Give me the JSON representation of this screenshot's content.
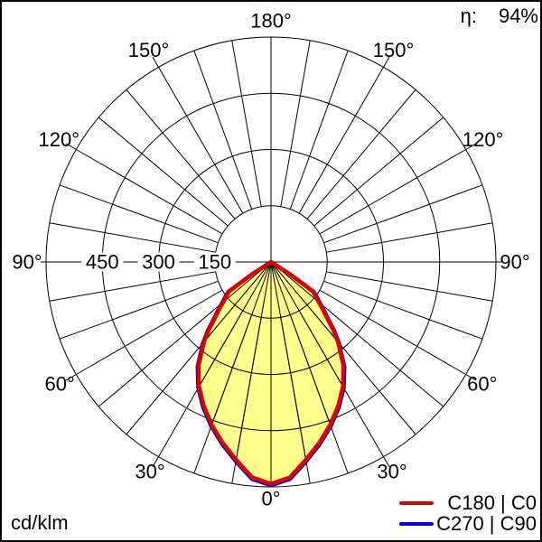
{
  "figure": {
    "background": "#ffffff",
    "frame_color": "#000000"
  },
  "texts": {
    "efficiency_symbol": "η:",
    "efficiency_value": "94%",
    "unit": "cd/klm"
  },
  "legend": [
    {
      "label": "C180 | C0",
      "color": "#d90000"
    },
    {
      "label": "C270 | C90",
      "color": "#0000cc"
    }
  ],
  "chart_data": {
    "type": "polar",
    "subtype": "luminous-intensity-distribution",
    "unit": "cd/klm",
    "light_output_ratio": "94%",
    "radial_axis": {
      "max": 600,
      "ticks": [
        150,
        300,
        450
      ],
      "tick_labels": [
        "150",
        "300",
        "450"
      ]
    },
    "angle_axis": {
      "step_deg": 10,
      "labeled_every_deg": 30,
      "labels": [
        "0°",
        "30°",
        "60°",
        "90°",
        "120°",
        "150°",
        "180°"
      ],
      "orientation": "0 deg at bottom, 180 deg at top, mirrored left and right"
    },
    "gamma_deg": [
      0,
      5,
      10,
      15,
      20,
      25,
      30,
      35,
      40,
      42.5,
      45,
      47.5,
      50,
      52.5,
      55,
      57,
      58,
      60,
      65,
      70,
      75,
      80,
      85,
      90
    ],
    "series": [
      {
        "name": "C180 | C0",
        "color": "#d90000",
        "fill": "#ffff8c",
        "values": [
          592,
          577,
          536,
          499,
          462,
          424,
          384,
          337,
          278,
          246,
          212,
          188,
          166,
          150,
          136,
          60,
          0,
          0,
          0,
          0,
          0,
          0,
          0,
          0
        ]
      },
      {
        "name": "C270 | C90",
        "color": "#0000cc",
        "values": [
          596,
          581,
          540,
          503,
          466,
          428,
          388,
          341,
          282,
          250,
          216,
          192,
          170,
          154,
          139,
          62,
          0,
          0,
          0,
          0,
          0,
          0,
          0,
          0
        ]
      }
    ]
  }
}
